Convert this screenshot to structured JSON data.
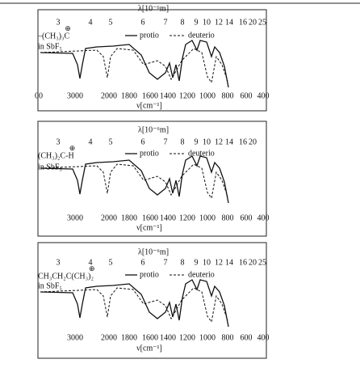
{
  "panels": [
    {
      "wavelength_label": "λ[10⁻⁶m]",
      "top_ticks": [
        "3",
        "4",
        "5",
        "6",
        "7",
        "8",
        "9",
        "10",
        "12",
        "14",
        "16",
        "20",
        "25"
      ],
      "bottom_ticks": [
        "00",
        "3000",
        "2000",
        "1800",
        "1600",
        "1400",
        "1200",
        "1000",
        "800",
        "600",
        "400"
      ],
      "axis_label": "ν[cm⁻¹]",
      "compound": "–(CH₃)₃C",
      "charge": "⊕",
      "medium": "in SbF₅",
      "legend": [
        "protio",
        "deuterio"
      ]
    },
    {
      "wavelength_label": "λ[10⁻⁶m]",
      "top_ticks": [
        "3",
        "4",
        "5",
        "6",
        "7",
        "8",
        "9",
        "10",
        "12",
        "14",
        "16",
        "20"
      ],
      "bottom_ticks": [
        "3000",
        "2000",
        "1800",
        "1600",
        "1400",
        "1200",
        "1000",
        "800",
        "600",
        "400"
      ],
      "axis_label": "ν[cm⁻¹]",
      "compound": "(CH₃)₂C-H",
      "charge": "⊕",
      "medium": "in SbF₅",
      "legend": [
        "protio",
        "deuterio"
      ]
    },
    {
      "wavelength_label": "λ[10⁻⁶m]",
      "top_ticks": [
        "3",
        "4",
        "5",
        "6",
        "7",
        "8",
        "9",
        "10",
        "12",
        "14",
        "16",
        "20",
        "25"
      ],
      "bottom_ticks": [
        "3000",
        "2000",
        "1800",
        "1600",
        "1400",
        "1200",
        "1000",
        "800",
        "600",
        "400"
      ],
      "axis_label": "ν[cm⁻¹]",
      "compound": "CH₃CH₂C(CH₃)₂",
      "charge": "⊕",
      "medium": "in SbF₅",
      "legend": [
        "protio",
        "deuterio"
      ]
    }
  ]
}
